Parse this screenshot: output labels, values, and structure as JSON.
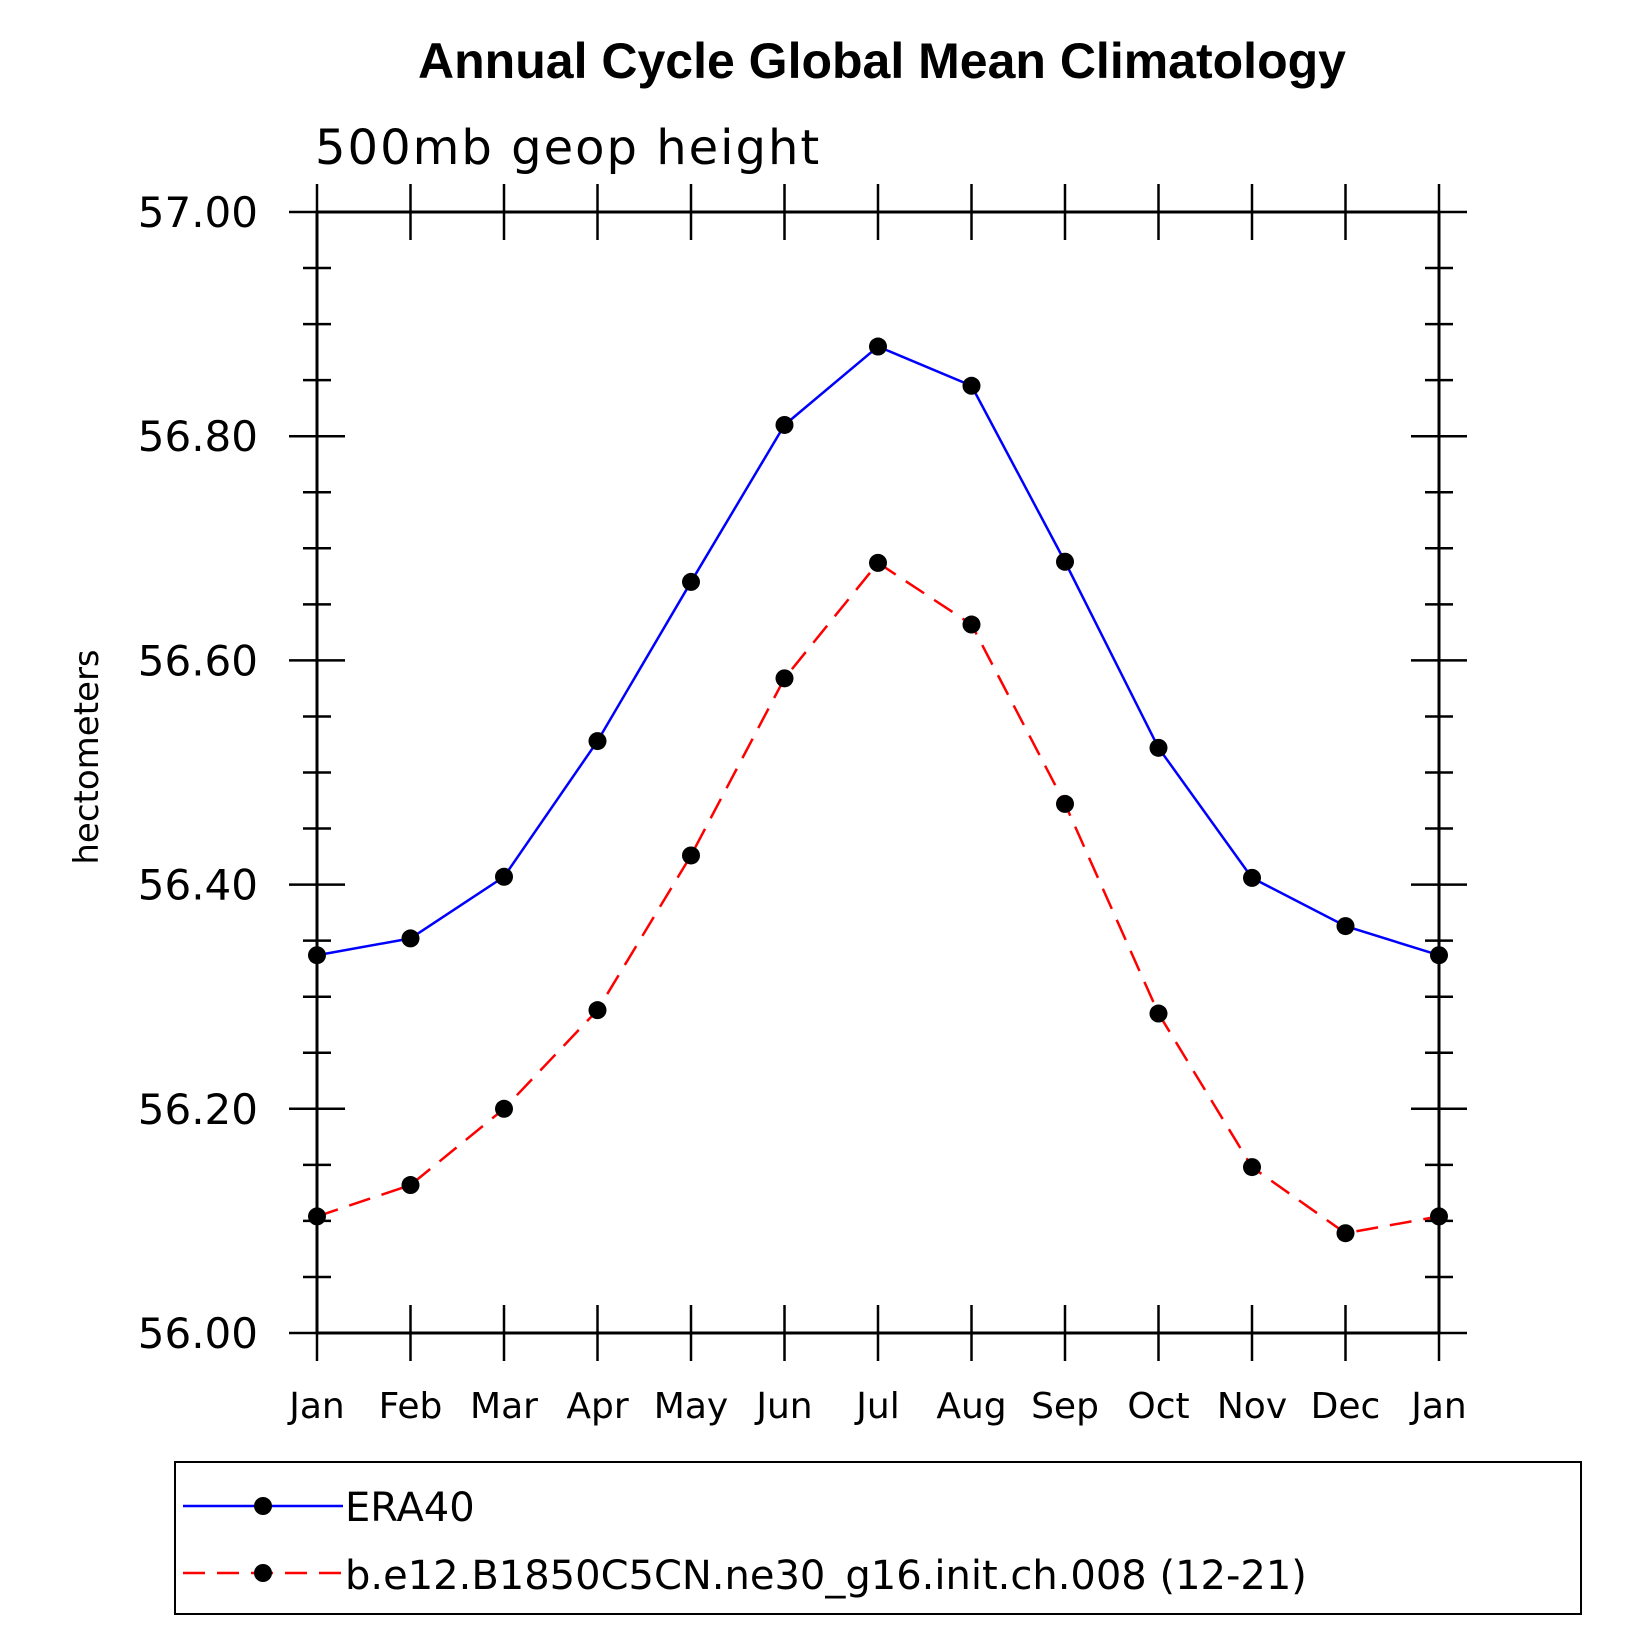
{
  "chart_data": {
    "type": "line",
    "title": "Annual Cycle Global Mean Climatology",
    "subtitle": "500mb geop height",
    "ylabel": "hectometers",
    "xlabel": "",
    "categories": [
      "Jan",
      "Feb",
      "Mar",
      "Apr",
      "May",
      "Jun",
      "Jul",
      "Aug",
      "Sep",
      "Oct",
      "Nov",
      "Dec",
      "Jan"
    ],
    "ylim": [
      56.0,
      57.0
    ],
    "yticks": [
      "56.00",
      "56.20",
      "56.40",
      "56.60",
      "56.80",
      "57.00"
    ],
    "grid": false,
    "legend_position": "bottom",
    "series": [
      {
        "name": "ERA40",
        "color": "#0000ff",
        "style": "solid",
        "values": [
          56.337,
          56.352,
          56.407,
          56.528,
          56.67,
          56.81,
          56.88,
          56.845,
          56.688,
          56.522,
          56.406,
          56.363,
          56.337
        ]
      },
      {
        "name": "b.e12.B1850C5CN.ne30_g16.init.ch.008 (12-21)",
        "color": "#ff0000",
        "style": "dashed",
        "values": [
          56.104,
          56.132,
          56.2,
          56.288,
          56.426,
          56.584,
          56.687,
          56.632,
          56.472,
          56.285,
          56.148,
          56.089,
          56.104
        ]
      }
    ]
  }
}
